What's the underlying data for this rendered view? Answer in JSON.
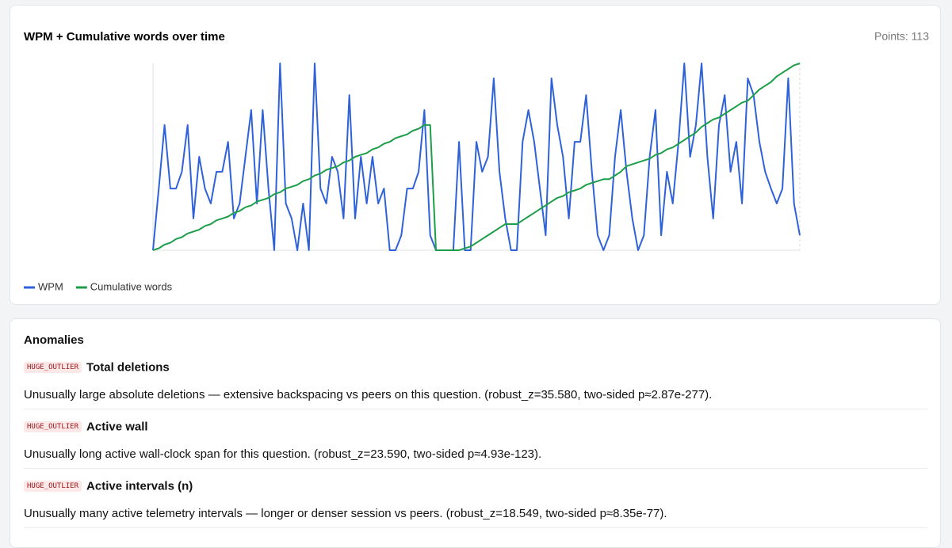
{
  "chart_card": {
    "points_label": "Points: 113"
  },
  "chart_data": {
    "type": "line",
    "title": "WPM + Cumulative words over time",
    "ylim": [
      0,
      100
    ],
    "y2lim": [
      0,
      100
    ],
    "grid": false,
    "legend": "bottom-left",
    "series": [
      {
        "name": "WPM",
        "color": "#2f62d9",
        "values": [
          0,
          33,
          67,
          33,
          33,
          42,
          67,
          17,
          50,
          33,
          25,
          42,
          42,
          58,
          17,
          25,
          50,
          75,
          25,
          75,
          33,
          0,
          100,
          25,
          17,
          0,
          25,
          0,
          100,
          33,
          25,
          50,
          42,
          17,
          83,
          17,
          50,
          25,
          50,
          25,
          33,
          0,
          0,
          8,
          33,
          33,
          42,
          75,
          8,
          0,
          0,
          0,
          0,
          58,
          0,
          0,
          58,
          42,
          50,
          92,
          42,
          17,
          0,
          0,
          58,
          75,
          58,
          33,
          8,
          92,
          67,
          50,
          17,
          58,
          58,
          83,
          42,
          8,
          0,
          8,
          50,
          75,
          42,
          17,
          0,
          8,
          50,
          75,
          8,
          42,
          25,
          58,
          100,
          50,
          67,
          100,
          50,
          17,
          67,
          83,
          42,
          58,
          25,
          92,
          83,
          58,
          42,
          33,
          25,
          33,
          92,
          25,
          8
        ]
      },
      {
        "name": "Cumulative words",
        "color": "#1e9e4a",
        "axis": "y2",
        "values": [
          0,
          1,
          3,
          4,
          6,
          7,
          9,
          10,
          11,
          13,
          14,
          16,
          17,
          18,
          20,
          21,
          23,
          24,
          26,
          27,
          28,
          30,
          31,
          33,
          34,
          35,
          37,
          38,
          40,
          41,
          43,
          44,
          45,
          47,
          48,
          50,
          51,
          52,
          54,
          55,
          57,
          58,
          60,
          61,
          62,
          64,
          65,
          67,
          67,
          0,
          0,
          0,
          0,
          0,
          1,
          2,
          4,
          6,
          8,
          10,
          12,
          14,
          14,
          14,
          16,
          18,
          20,
          22,
          24,
          26,
          28,
          29,
          31,
          32,
          33,
          35,
          36,
          37,
          38,
          38,
          40,
          42,
          45,
          46,
          47,
          48,
          49,
          51,
          52,
          54,
          55,
          57,
          59,
          61,
          63,
          66,
          68,
          70,
          71,
          73,
          75,
          77,
          79,
          80,
          83,
          86,
          88,
          90,
          93,
          95,
          97,
          99,
          100
        ]
      }
    ]
  },
  "anomalies": {
    "title": "Anomalies",
    "items": [
      {
        "badge": "HUGE_OUTLIER",
        "title": "Total deletions",
        "description": "Unusually large absolute deletions — extensive backspacing vs peers on this question. (robust_z=35.580, two-sided p≈2.87e-277)."
      },
      {
        "badge": "HUGE_OUTLIER",
        "title": "Active wall",
        "description": "Unusually long active wall-clock span for this question. (robust_z=23.590, two-sided p≈4.93e-123)."
      },
      {
        "badge": "HUGE_OUTLIER",
        "title": "Active intervals (n)",
        "description": "Unusually many active telemetry intervals — longer or denser session vs peers. (robust_z=18.549, two-sided p≈8.35e-77)."
      }
    ]
  }
}
